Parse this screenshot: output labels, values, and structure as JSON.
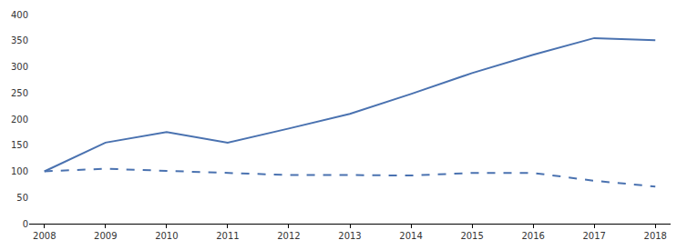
{
  "chart_data": {
    "type": "line",
    "x": [
      2008,
      2009,
      2010,
      2011,
      2012,
      2013,
      2014,
      2015,
      2016,
      2017,
      2018
    ],
    "series": [
      {
        "color": "#4a72b0",
        "line_style": "solid",
        "values": [
          100,
          155,
          175,
          155,
          182,
          210,
          248,
          288,
          323,
          355,
          351
        ]
      },
      {
        "color": "#4a72b0",
        "line_style": "dashed",
        "values": [
          100,
          105,
          101,
          97,
          93,
          93,
          92,
          97,
          97,
          82,
          71
        ]
      }
    ],
    "xlim": [
      2007.75,
      2018.25
    ],
    "xticks": [
      2008,
      2009,
      2010,
      2011,
      2012,
      2013,
      2014,
      2015,
      2016,
      2017,
      2018
    ],
    "ylim": [
      0,
      400
    ],
    "yticks": [
      0,
      50,
      100,
      150,
      200,
      250,
      300,
      350,
      400
    ],
    "grid": false
  }
}
